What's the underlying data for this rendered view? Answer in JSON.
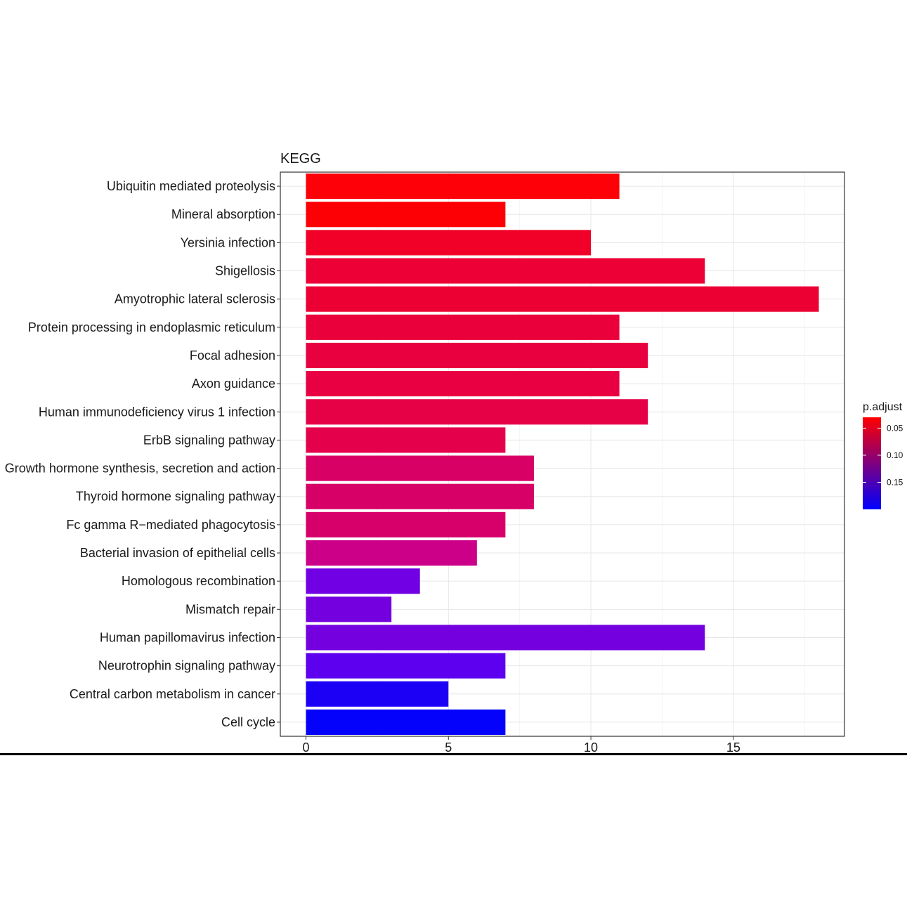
{
  "chart_data": {
    "type": "bar",
    "orientation": "horizontal",
    "title": "KEGG",
    "xlabel": "",
    "ylabel": "",
    "xlim": [
      -0.9,
      18.9
    ],
    "x_ticks": [
      "0",
      "5",
      "10",
      "15"
    ],
    "x_tick_values": [
      0,
      5,
      10,
      15
    ],
    "grid": true,
    "categories": [
      "Ubiquitin mediated proteolysis",
      "Mineral absorption",
      "Yersinia infection",
      "Shigellosis",
      "Amyotrophic lateral sclerosis",
      "Protein processing in endoplasmic reticulum",
      "Focal adhesion",
      "Axon guidance",
      "Human immunodeficiency virus 1 infection",
      "ErbB signaling pathway",
      "Growth hormone synthesis, secretion and action",
      "Thyroid hormone signaling pathway",
      "Fc gamma R−mediated phagocytosis",
      "Bacterial invasion of epithelial cells",
      "Homologous recombination",
      "Mismatch repair",
      "Human papillomavirus infection",
      "Neurotrophin signaling pathway",
      "Central carbon metabolism in cancer",
      "Cell cycle"
    ],
    "values": [
      11,
      7,
      10,
      14,
      18,
      11,
      12,
      11,
      12,
      7,
      8,
      8,
      7,
      6,
      4,
      3,
      14,
      7,
      5,
      7
    ],
    "p_adjust": [
      0.03,
      0.031,
      0.04,
      0.045,
      0.05,
      0.052,
      0.055,
      0.06,
      0.06,
      0.065,
      0.09,
      0.09,
      0.09,
      0.1,
      0.16,
      0.16,
      0.16,
      0.175,
      0.195,
      0.2
    ],
    "colors": [
      "#fd0008",
      "#fd0005",
      "#f10027",
      "#ec0035",
      "#ec0034",
      "#ea003a",
      "#e8003f",
      "#e80042",
      "#e60046",
      "#e4004b",
      "#d80065",
      "#d60067",
      "#d7006b",
      "#cc0088",
      "#7100e4",
      "#7400e0",
      "#7400e0",
      "#5d00ef",
      "#1c00f6",
      "#0502fb"
    ],
    "legend": {
      "title": "p.adjust",
      "ticks": [
        "0.05",
        "0.10",
        "0.15"
      ],
      "tick_values": [
        0.05,
        0.1,
        0.15
      ],
      "range": [
        0.03,
        0.2
      ],
      "color_high": "#ff0000",
      "color_low": "#0000ff",
      "placement": "right"
    }
  }
}
